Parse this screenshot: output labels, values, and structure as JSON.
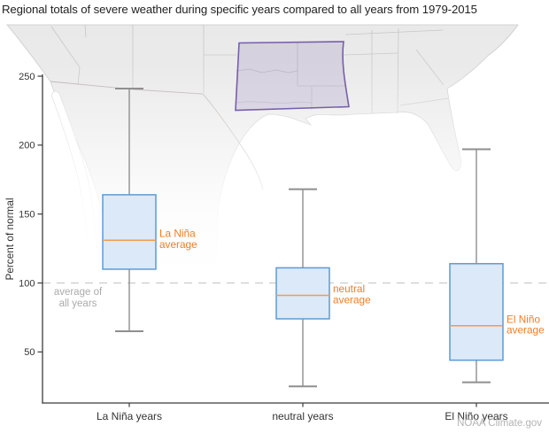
{
  "title": "Regional totals of severe weather during specific years compared to all years from 1979-2015",
  "footer": "NOAA Climate.gov",
  "chart_data": {
    "type": "boxplot",
    "title": "Regional totals of severe weather during specific years compared to all years from 1979-2015",
    "xlabel": "",
    "ylabel": "Percent of normal",
    "yticks": [
      50,
      100,
      150,
      200,
      250
    ],
    "ylim": [
      13,
      252
    ],
    "grid": false,
    "reference_line": {
      "value": 100,
      "label_line1": "average of",
      "label_line2": "all years"
    },
    "categories": [
      "La Niña years",
      "neutral years",
      "El Niño years"
    ],
    "series": [
      {
        "name": "La Niña years",
        "annotation_line1": "La Niña",
        "annotation_line2": "average",
        "whisker_low": 65,
        "q1": 110,
        "median": 131,
        "q3": 164,
        "whisker_high": 241
      },
      {
        "name": "neutral years",
        "annotation_line1": "neutral",
        "annotation_line2": "average",
        "whisker_low": 25,
        "q1": 74,
        "median": 91,
        "q3": 111,
        "whisker_high": 168
      },
      {
        "name": "El Niño years",
        "annotation_line1": "El Niño",
        "annotation_line2": "average",
        "whisker_low": 28,
        "q1": 44,
        "median": 69,
        "q3": 114,
        "whisker_high": 197
      }
    ]
  },
  "colors": {
    "box_fill": "#dce9f8",
    "box_stroke": "#5b9bd5",
    "median": "#f09c50",
    "annotation": "#f07d26",
    "whisker": "#8f8f8f",
    "axis": "#3c3c3c",
    "tick_text": "#333333",
    "reference_line": "#cccccc",
    "reference_text": "#ababab",
    "map_land": "#e9e9e9",
    "map_coast": "#c9c9c9",
    "map_border": "#c6c6c6",
    "mexico_border": "#b9b0ae",
    "highlight_stroke": "#6a51a3",
    "highlight_fill": "#6a51a3"
  }
}
